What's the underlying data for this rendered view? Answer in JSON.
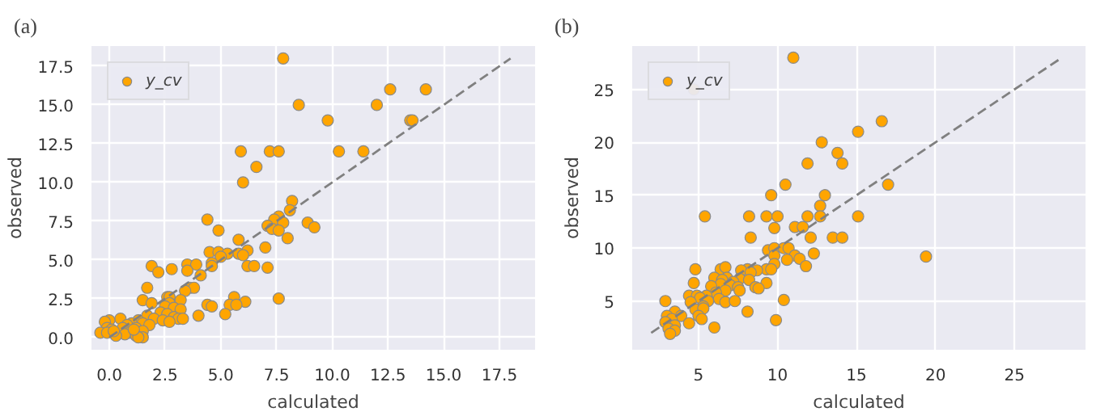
{
  "chart_data": [
    {
      "type": "scatter",
      "title": "(a)",
      "xlabel": "calculated",
      "ylabel": "observed",
      "xlim": [
        -0.8,
        19.1
      ],
      "ylim": [
        -0.8,
        18.8
      ],
      "xticks": [
        {
          "value": 0,
          "label": "0.0"
        },
        {
          "value": 2.5,
          "label": "2.5"
        },
        {
          "value": 5,
          "label": "5.0"
        },
        {
          "value": 7.5,
          "label": "7.5"
        },
        {
          "value": 10,
          "label": "10.0"
        },
        {
          "value": 12.5,
          "label": "12.5"
        },
        {
          "value": 15,
          "label": "15.0"
        },
        {
          "value": 17.5,
          "label": "17.5"
        }
      ],
      "yticks": [
        {
          "value": 0,
          "label": "0.0"
        },
        {
          "value": 2.5,
          "label": "2.5"
        },
        {
          "value": 5,
          "label": "5.0"
        },
        {
          "value": 7.5,
          "label": "7.5"
        },
        {
          "value": 10,
          "label": "10.0"
        },
        {
          "value": 12.5,
          "label": "12.5"
        },
        {
          "value": 15,
          "label": "15.0"
        },
        {
          "value": 17.5,
          "label": "17.5"
        }
      ],
      "grid": true,
      "legend": "top left",
      "marker": "circle",
      "series": [
        {
          "name": "y_cv",
          "color": "#ffa500",
          "x": [
            7.8,
            8.5,
            12.6,
            14.2,
            12.0,
            9.8,
            13.5,
            13.6,
            5.9,
            7.2,
            7.6,
            10.3,
            11.4,
            6.6,
            6.0,
            8.2,
            8.1,
            7.6,
            7.4,
            7.8,
            8.9,
            4.4,
            7.1,
            9.2,
            7.3,
            7.6,
            4.9,
            8.0,
            5.8,
            7.0,
            6.2,
            4.5,
            4.9,
            5.8,
            6.0,
            5.3,
            5.0,
            4.6,
            4.6,
            6.2,
            6.5,
            7.1,
            1.9,
            2.2,
            2.8,
            3.5,
            3.9,
            3.5,
            4.1,
            3.6,
            3.8,
            3.4,
            1.7,
            2.6,
            2.7,
            5.6,
            7.6,
            1.5,
            3.2,
            6.1,
            1.9,
            2.7,
            4.4,
            5.4,
            5.7,
            4.6,
            2.5,
            2.9,
            3.2,
            2.3,
            2.6,
            5.2,
            4.0,
            1.7,
            2.0,
            2.9,
            3.1,
            3.3,
            2.4,
            2.7,
            1.3,
            0.5,
            0.0,
            -0.2,
            1.0,
            1.5,
            0.8,
            1.8,
            0.6,
            1.2,
            -0.1,
            0.1,
            1.5,
            0.9,
            -0.4,
            -0.1,
            0.7,
            0.3,
            1.2,
            1.5,
            1.3,
            0.2,
            1.1
          ],
          "values": [
            18,
            15,
            16,
            16,
            15,
            14,
            14,
            14,
            12,
            12,
            12,
            12,
            12,
            11,
            10,
            8.8,
            8.2,
            7.8,
            7.6,
            7.4,
            7.4,
            7.6,
            7.2,
            7.1,
            7.0,
            6.9,
            6.9,
            6.4,
            6.3,
            5.8,
            5.6,
            5.5,
            5.5,
            5.4,
            5.3,
            5.4,
            5.2,
            4.8,
            4.6,
            4.6,
            4.6,
            4.5,
            4.6,
            4.2,
            4.4,
            4.7,
            4.7,
            4.3,
            4.0,
            3.2,
            3.2,
            3.0,
            3.2,
            2.6,
            2.6,
            2.6,
            2.5,
            2.4,
            2.4,
            2.3,
            2.2,
            2.2,
            2.1,
            2.1,
            2.1,
            2.0,
            2.0,
            1.9,
            1.8,
            1.6,
            1.5,
            1.5,
            1.4,
            1.4,
            1.2,
            1.3,
            1.2,
            1.2,
            1.1,
            1.0,
            1.1,
            1.2,
            1.1,
            1.0,
            0.9,
            0.9,
            0.8,
            0.8,
            0.6,
            0.6,
            0.6,
            0.5,
            0.4,
            0.3,
            0.3,
            0.3,
            0.2,
            0.1,
            0.1,
            0.0,
            0.0,
            0.4,
            0.5
          ]
        },
        {
          "type": "line",
          "color": "#808080",
          "line_style": "dashed",
          "marker": "none",
          "x": [
            0,
            18
          ],
          "values": [
            0,
            18
          ]
        }
      ]
    },
    {
      "type": "scatter",
      "title": "(b)",
      "xlabel": "calculated",
      "ylabel": "observed",
      "xlim": [
        0.8,
        29.5
      ],
      "ylim": [
        0.4,
        29.1
      ],
      "xticks": [
        5,
        10,
        15,
        20,
        25
      ],
      "yticks": [
        5,
        10,
        15,
        20,
        25
      ],
      "grid": true,
      "legend": "top left",
      "marker": "circle",
      "series": [
        {
          "name": "y_cv",
          "color": "#ffa500",
          "x": [
            11.0,
            4.7,
            16.6,
            15.1,
            12.8,
            13.8,
            11.9,
            14.1,
            10.5,
            17.0,
            9.6,
            13.0,
            12.7,
            5.4,
            8.2,
            9.3,
            10.0,
            11.9,
            12.7,
            15.1,
            11.1,
            11.6,
            9.8,
            8.3,
            12.1,
            13.5,
            14.1,
            9.4,
            9.8,
            10.4,
            10.7,
            11.1,
            11.4,
            12.3,
            19.4,
            9.8,
            10.6,
            9.8,
            11.8,
            4.8,
            6.4,
            6.7,
            8.1,
            9.3,
            9.6,
            7.7,
            8.7,
            8.3,
            6.0,
            6.8,
            7.6,
            8.2,
            6.5,
            7.2,
            6.4,
            4.7,
            9.3,
            7.0,
            7.5,
            8.6,
            5.8,
            8.8,
            7.6,
            6.7,
            6.1,
            5.5,
            4.4,
            4.9,
            5.1,
            6.3,
            5.6,
            6.7,
            7.3,
            10.4,
            2.9,
            4.5,
            5.3,
            4.8,
            5.3,
            8.1,
            3.5,
            3.9,
            5.0,
            5.2,
            3.0,
            3.3,
            9.9,
            4.4,
            2.9,
            3.5,
            3.1,
            6.0,
            3.5,
            3.2
          ],
          "values": [
            28,
            25,
            22,
            21,
            20,
            19,
            18,
            18,
            16,
            16,
            15,
            15,
            14,
            13,
            13,
            13,
            13,
            13,
            13,
            13,
            12,
            12,
            11.9,
            11,
            11,
            11,
            11,
            9.8,
            10,
            10,
            10,
            9.3,
            9.0,
            9.5,
            9.2,
            9.3,
            8.9,
            8.5,
            8.3,
            8.0,
            8.0,
            8.2,
            8.0,
            8.0,
            8.0,
            7.9,
            7.9,
            7.7,
            7.2,
            7.2,
            7.1,
            7.0,
            7.0,
            6.8,
            6.6,
            6.7,
            6.7,
            6.5,
            6.3,
            6.3,
            6.4,
            6.2,
            6.0,
            6.0,
            5.8,
            5.5,
            5.5,
            5.5,
            5.3,
            5.2,
            5.0,
            4.9,
            5.0,
            5.1,
            5.0,
            4.9,
            4.5,
            4.2,
            4.3,
            4.0,
            4.0,
            3.6,
            3.6,
            3.3,
            3.6,
            3.3,
            3.2,
            2.9,
            3.0,
            2.7,
            2.4,
            2.5,
            2.2,
            1.9
          ]
        },
        {
          "type": "line",
          "color": "#808080",
          "line_style": "dashed",
          "marker": "none",
          "x": [
            2,
            28
          ],
          "values": [
            2,
            28
          ]
        }
      ]
    }
  ]
}
